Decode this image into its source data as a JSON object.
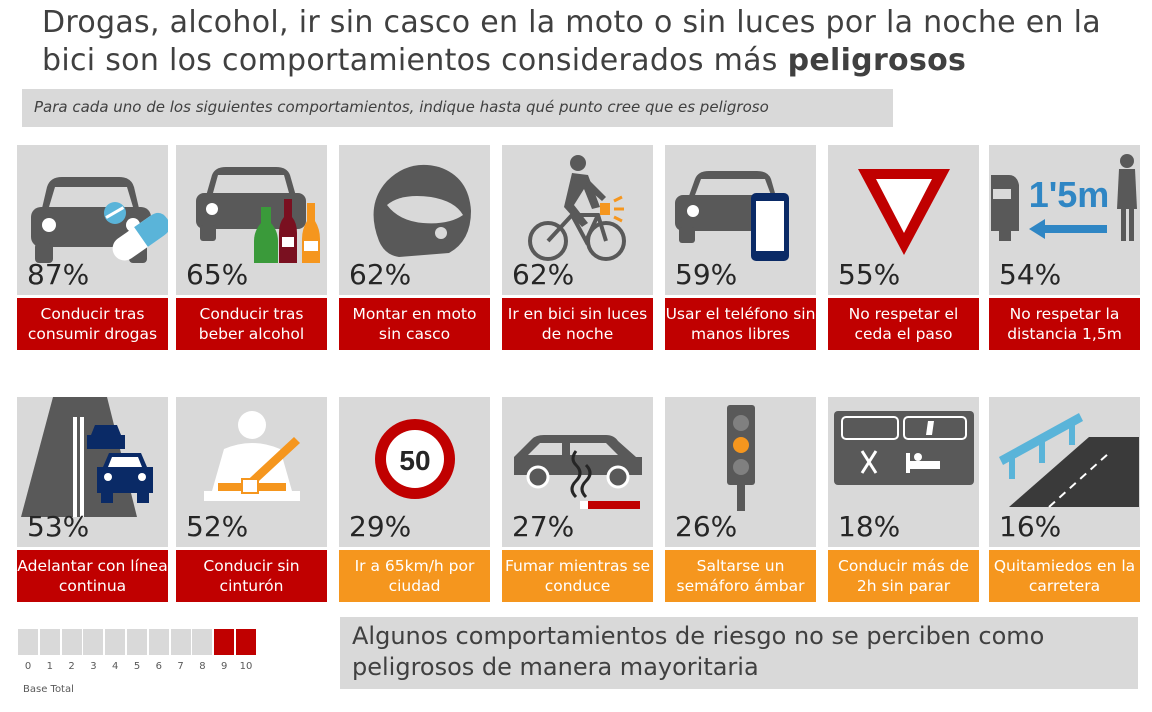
{
  "header": {
    "title_text": "Drogas, alcohol, ir sin casco en la moto o sin luces por la noche en la bici  son los comportamientos considerados más ",
    "title_bold": "peligrosos",
    "subtitle": "Para cada uno de los siguientes comportamientos, indique hasta qué punto cree que es peligroso"
  },
  "tiles": [
    {
      "pct": "87%",
      "label": "Conducir tras consumir drogas",
      "color": "red",
      "icon": "car-pills-icon"
    },
    {
      "pct": "65%",
      "label": "Conducir tras beber alcohol",
      "color": "red",
      "icon": "car-bottles-icon"
    },
    {
      "pct": "62%",
      "label": "Montar en moto sin casco",
      "color": "red",
      "icon": "helmet-icon"
    },
    {
      "pct": "62%",
      "label": "Ir en bici sin luces de noche",
      "color": "red",
      "icon": "cyclist-light-icon"
    },
    {
      "pct": "59%",
      "label": "Usar el teléfono sin manos libres",
      "color": "red",
      "icon": "car-phone-icon"
    },
    {
      "pct": "55%",
      "label": "No respetar  el ceda el paso",
      "color": "red",
      "icon": "yield-sign-icon"
    },
    {
      "pct": "54%",
      "label": "No respetar la distancia 1,5m",
      "color": "red",
      "icon": "distance-1-5m-icon",
      "icon_text": "1'5m"
    },
    {
      "pct": "53%",
      "label": "Adelantar con línea continua",
      "color": "red",
      "icon": "overtaking-icon"
    },
    {
      "pct": "52%",
      "label": "Conducir sin cinturón",
      "color": "red",
      "icon": "seatbelt-icon"
    },
    {
      "pct": "29%",
      "label": "Ir a  65km/h por ciudad",
      "color": "orange",
      "icon": "speed-limit-50-icon",
      "icon_text": "50"
    },
    {
      "pct": "27%",
      "label": "Fumar mientras se conduce",
      "color": "orange",
      "icon": "car-smoke-icon"
    },
    {
      "pct": "26%",
      "label": "Saltarse un semáforo ámbar",
      "color": "orange",
      "icon": "traffic-light-icon"
    },
    {
      "pct": "18%",
      "label": "Conducir más de 2h sin parar",
      "color": "orange",
      "icon": "rest-area-icon"
    },
    {
      "pct": "16%",
      "label": "Quitamiedos en la carretera",
      "color": "orange",
      "icon": "guardrail-icon"
    }
  ],
  "scale": {
    "numbers": [
      "0",
      "1",
      "2",
      "3",
      "4",
      "5",
      "6",
      "7",
      "8",
      "9",
      "10"
    ],
    "highlight_from": 9,
    "base_label": "Base Total"
  },
  "footer": {
    "text": "Algunos comportamientos de riesgo no se perciben como peligrosos de manera mayoritaria"
  },
  "colors": {
    "red": "#c00000",
    "orange": "#f5961e",
    "panel": "#d9d9d9",
    "icon_gray": "#595959"
  },
  "chart_data": {
    "type": "bar",
    "categories": [
      "Conducir tras consumir drogas",
      "Conducir tras beber alcohol",
      "Montar en moto sin casco",
      "Ir en bici sin luces de noche",
      "Usar el teléfono sin manos libres",
      "No respetar  el ceda el paso",
      "No respetar la distancia 1,5m",
      "Adelantar con línea continua",
      "Conducir sin cinturón",
      "Ir a  65km/h por ciudad",
      "Fumar mientras se conduce",
      "Saltarse un semáforo ámbar",
      "Conducir más de 2h sin parar",
      "Quitamiedos en la carretera"
    ],
    "values": [
      87,
      65,
      62,
      62,
      59,
      55,
      54,
      53,
      52,
      29,
      27,
      26,
      18,
      16
    ],
    "unit": "%"
  }
}
